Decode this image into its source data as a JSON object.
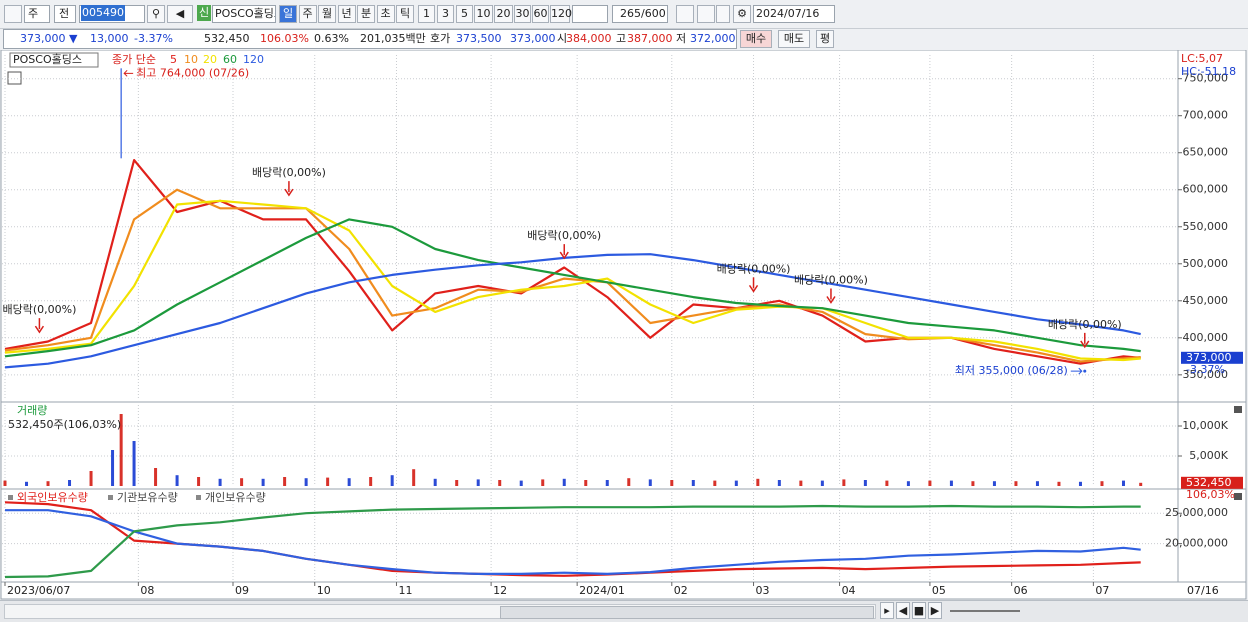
{
  "toolbar": {
    "period_unit": "주",
    "adjust": "전",
    "code": "005490",
    "new_badge": "신",
    "name": "POSCO홀딩스",
    "periods": [
      "일",
      "주",
      "월",
      "년",
      "분",
      "초",
      "틱"
    ],
    "intervals": [
      "1",
      "3",
      "5",
      "10",
      "20",
      "30",
      "60",
      "120"
    ],
    "count": 265,
    "max_count": "/600",
    "date": "2024/07/16"
  },
  "quote_bar": {
    "price": "373,000 ▼",
    "change": "13,000",
    "change_rate": "-3.37%",
    "volume": "532,450",
    "volume_rate": "106.03%",
    "turnover": "0.63%",
    "amount": "201,035백만",
    "ask_label": "호가",
    "ask": "373,500",
    "bid": "373,000",
    "open_label": "시",
    "open": "384,000",
    "high_label": "고",
    "high": "387,000",
    "low_label": "저",
    "low": "372,000",
    "buy": "매수",
    "sell": "매도",
    "avg": "평"
  },
  "chart_data": [
    {
      "type": "line",
      "title": "POSCO홀딩스",
      "subtitle": "종가 단순",
      "grid": true,
      "x": [
        0,
        10,
        20,
        30,
        40,
        50,
        60,
        70,
        80,
        90,
        100,
        110,
        120,
        130,
        140,
        150,
        160,
        170,
        180,
        190,
        200,
        210,
        220,
        230,
        240,
        250,
        260,
        264
      ],
      "series": [
        {
          "name": "5",
          "color": "#e0201b",
          "values": [
            385000,
            395000,
            420000,
            640000,
            570000,
            585000,
            560000,
            560000,
            490000,
            410000,
            460000,
            470000,
            460000,
            495000,
            455000,
            400000,
            445000,
            440000,
            450000,
            430000,
            395000,
            400000,
            400000,
            385000,
            375000,
            365000,
            375000,
            373000
          ]
        },
        {
          "name": "10",
          "color": "#f08c1e",
          "values": [
            383000,
            390000,
            400000,
            560000,
            600000,
            575000,
            575000,
            575000,
            520000,
            430000,
            440000,
            465000,
            462000,
            480000,
            475000,
            420000,
            430000,
            440000,
            445000,
            435000,
            405000,
            398000,
            400000,
            390000,
            380000,
            368000,
            372000,
            374000
          ]
        },
        {
          "name": "20",
          "color": "#f2e200",
          "values": [
            380000,
            385000,
            392000,
            470000,
            580000,
            585000,
            580000,
            575000,
            545000,
            470000,
            435000,
            455000,
            465000,
            470000,
            480000,
            445000,
            420000,
            438000,
            442000,
            440000,
            420000,
            400000,
            400000,
            395000,
            385000,
            372000,
            370000,
            372000
          ]
        },
        {
          "name": "60",
          "color": "#1c9a3c",
          "values": [
            375000,
            382000,
            390000,
            410000,
            445000,
            475000,
            505000,
            535000,
            560000,
            550000,
            520000,
            505000,
            495000,
            485000,
            475000,
            465000,
            455000,
            447000,
            443000,
            440000,
            430000,
            420000,
            415000,
            410000,
            400000,
            390000,
            385000,
            382000
          ]
        },
        {
          "name": "120",
          "color": "#2c5ae0",
          "values": [
            360000,
            365000,
            375000,
            390000,
            405000,
            420000,
            440000,
            460000,
            475000,
            485000,
            492000,
            498000,
            502000,
            508000,
            512000,
            513000,
            505000,
            495000,
            485000,
            475000,
            465000,
            455000,
            445000,
            435000,
            425000,
            418000,
            410000,
            405000
          ]
        }
      ],
      "ylim": [
        316000,
        782000
      ],
      "yticks": [
        {
          "value": 350000,
          "label": "350,000"
        },
        {
          "value": 400000,
          "label": "400,000"
        },
        {
          "value": 450000,
          "label": "450,000"
        },
        {
          "value": 500000,
          "label": "500,000"
        },
        {
          "value": 550000,
          "label": "550,000"
        },
        {
          "value": 600000,
          "label": "600,000"
        },
        {
          "value": 650000,
          "label": "650,000"
        },
        {
          "value": 700000,
          "label": "700,000"
        },
        {
          "value": 750000,
          "label": "750,000"
        }
      ],
      "annotations": [
        {
          "label": "배당락(0,00%)",
          "x": 8,
          "y": 405000
        },
        {
          "label": "배당락(0,00%)",
          "x": 66,
          "y": 590000
        },
        {
          "label": "배당락(0,00%)",
          "x": 130,
          "y": 505000
        },
        {
          "label": "배당락(0,00%)",
          "x": 174,
          "y": 460000
        },
        {
          "label": "배당락(0,00%)",
          "x": 192,
          "y": 445000
        },
        {
          "label": "배당락(0,00%)",
          "x": 251,
          "y": 385000
        }
      ],
      "high": {
        "label": "최고 764,000 (07/26)",
        "x": 27,
        "y": 764000
      },
      "low": {
        "label": "최저 355,000 (06/28)",
        "x": 251,
        "y": 355000
      },
      "last_label": {
        "value": 373000,
        "label": "373,000"
      },
      "change_label": "-3.37%",
      "lc_label": "LC:5,07",
      "hc_label": "HC:-51.18"
    },
    {
      "type": "bar",
      "title": "거래량",
      "subtitle": "532,450주(106,03%)",
      "grid": true,
      "colors": [
        "#d8322a",
        "#2b4bd6"
      ],
      "x": [
        0,
        5,
        10,
        15,
        20,
        25,
        27,
        30,
        35,
        40,
        45,
        50,
        55,
        60,
        65,
        70,
        75,
        80,
        85,
        90,
        95,
        100,
        105,
        110,
        115,
        120,
        125,
        130,
        135,
        140,
        145,
        150,
        155,
        160,
        165,
        170,
        175,
        180,
        185,
        190,
        195,
        200,
        205,
        210,
        215,
        220,
        225,
        230,
        235,
        240,
        245,
        250,
        255,
        260,
        264
      ],
      "values": [
        900,
        700,
        800,
        1000,
        2500,
        6000,
        12000,
        7500,
        3000,
        1800,
        1500,
        1200,
        1300,
        1200,
        1500,
        1300,
        1400,
        1300,
        1500,
        1800,
        2800,
        1200,
        1000,
        1100,
        1000,
        900,
        1100,
        1200,
        1000,
        1000,
        1300,
        1100,
        1000,
        1000,
        900,
        900,
        1200,
        1000,
        900,
        900,
        1100,
        1000,
        900,
        800,
        900,
        900,
        800,
        800,
        800,
        800,
        700,
        700,
        800,
        900,
        532.45
      ],
      "ylim": [
        0,
        13500
      ],
      "yticks": [
        {
          "value": 5000,
          "label": "5,000K"
        },
        {
          "value": 10000,
          "label": "10,000K"
        }
      ],
      "last_label": {
        "value": 532.45,
        "label": "532,450"
      },
      "change_label": "106,03%"
    },
    {
      "type": "line",
      "grid": true,
      "x": [
        0,
        10,
        20,
        30,
        40,
        50,
        60,
        70,
        80,
        90,
        100,
        110,
        120,
        130,
        140,
        150,
        160,
        170,
        180,
        190,
        200,
        210,
        220,
        230,
        240,
        250,
        260,
        264
      ],
      "series": [
        {
          "name": "외국인보유수량",
          "color": "#e0201b",
          "values": [
            26800000,
            26500000,
            25500000,
            20500000,
            20000000,
            19500000,
            18800000,
            17500000,
            16500000,
            15500000,
            15200000,
            15000000,
            14800000,
            14700000,
            14900000,
            15200000,
            15500000,
            15800000,
            15900000,
            16000000,
            15800000,
            16000000,
            16200000,
            16300000,
            16400000,
            16500000,
            16800000,
            16900000
          ]
        },
        {
          "name": "기관보유수량",
          "color": "#3060e0",
          "values": [
            25500000,
            25500000,
            24500000,
            22000000,
            20000000,
            19500000,
            18800000,
            17500000,
            16500000,
            15800000,
            15200000,
            15000000,
            15000000,
            15200000,
            15000000,
            15300000,
            16000000,
            16500000,
            17000000,
            17300000,
            17500000,
            18000000,
            18200000,
            18500000,
            18800000,
            18700000,
            19300000,
            19000000
          ]
        },
        {
          "name": "개인보유수량",
          "color": "#2e9a4a",
          "values": [
            14500000,
            14600000,
            15500000,
            22000000,
            23000000,
            23500000,
            24300000,
            25000000,
            25300000,
            25600000,
            25700000,
            25800000,
            25900000,
            26000000,
            26000000,
            26000000,
            26100000,
            26100000,
            26100000,
            26200000,
            26100000,
            26100000,
            26200000,
            26100000,
            26100000,
            26000000,
            26100000,
            26100000
          ]
        }
      ],
      "ylim": [
        14000000,
        28500000
      ],
      "yticks": [
        {
          "value": 20000000,
          "label": "20,000,000"
        },
        {
          "value": 25000000,
          "label": "25,000,000"
        }
      ],
      "xlim": [
        0,
        265
      ],
      "xticks": [
        {
          "value": 0,
          "label": "2023/06/07"
        },
        {
          "value": 31,
          "label": "08"
        },
        {
          "value": 53,
          "label": "09"
        },
        {
          "value": 72,
          "label": "10"
        },
        {
          "value": 91,
          "label": "11"
        },
        {
          "value": 113,
          "label": "12"
        },
        {
          "value": 133,
          "label": "2024/01"
        },
        {
          "value": 155,
          "label": "02"
        },
        {
          "value": 174,
          "label": "03"
        },
        {
          "value": 194,
          "label": "04"
        },
        {
          "value": 215,
          "label": "05"
        },
        {
          "value": 234,
          "label": "06"
        },
        {
          "value": 253,
          "label": "07"
        }
      ],
      "date_label": "07/16"
    }
  ]
}
